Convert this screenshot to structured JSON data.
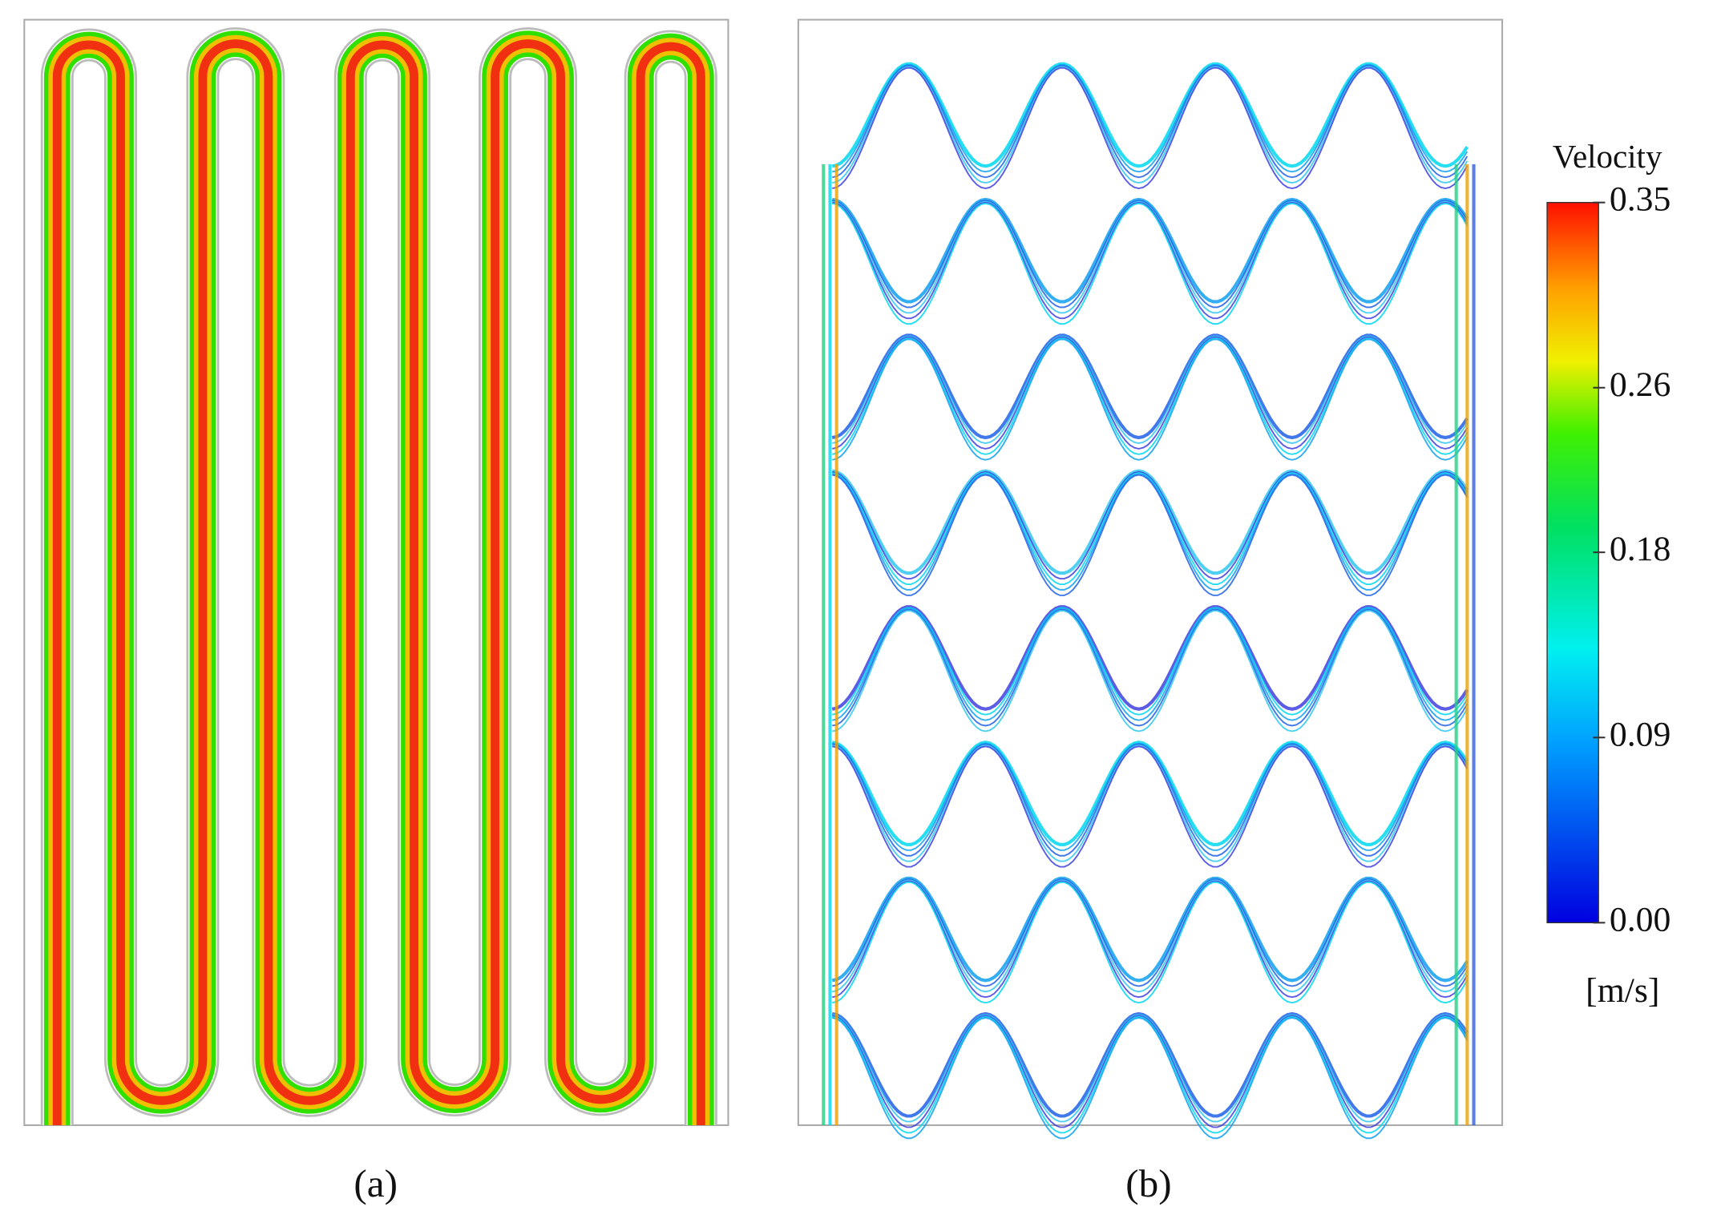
{
  "panels": [
    {
      "label": "(a)"
    },
    {
      "label": "(b)"
    }
  ],
  "colorbar": {
    "title": "Velocity",
    "unit": "[m/s]",
    "range": [
      0,
      0.35
    ],
    "ticks": [
      0.35,
      0.26,
      0.18,
      0.09,
      {
        "value": 0,
        "label": "0.00"
      }
    ]
  }
}
